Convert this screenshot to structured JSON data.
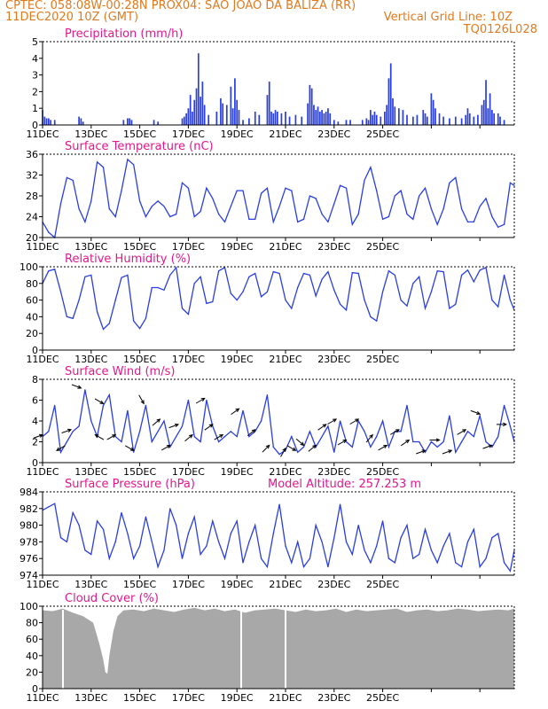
{
  "header": {
    "line1": "CPTEC:   058:08W-00:28N   PROX04: SAO JOAO DA BALIZA (RR)",
    "line2": "11DEC2020 10Z (GMT)",
    "grid_note": "Vertical Grid Line: 10Z",
    "code": "TQ0126L028"
  },
  "colors": {
    "header_text": "#e07a1f",
    "title_text": "#e0188c",
    "series": "#2a3ee0",
    "cloud": "#a8a8a8",
    "arrows": "#000000"
  },
  "x_tick_labels": [
    "11DEC",
    "13DEC",
    "15DEC",
    "17DEC",
    "19DEC",
    "21DEC",
    "23DEC",
    "25DEC"
  ],
  "chart_data": [
    {
      "id": "precip",
      "type": "bar",
      "title": "Precipitation (mm/h)",
      "ylim": [
        0,
        5
      ],
      "yticks": [
        0,
        1,
        2,
        3,
        4,
        5
      ],
      "x_unit": "hours since 11DEC2020 10Z",
      "bars": [
        [
          0,
          0.9
        ],
        [
          2,
          0.5
        ],
        [
          4,
          0.4
        ],
        [
          6,
          0.4
        ],
        [
          8,
          0.3
        ],
        [
          12,
          0.3
        ],
        [
          36,
          0.5
        ],
        [
          38,
          0.4
        ],
        [
          40,
          0.2
        ],
        [
          80,
          0.3
        ],
        [
          84,
          0.4
        ],
        [
          86,
          0.4
        ],
        [
          88,
          0.3
        ],
        [
          110,
          0.3
        ],
        [
          114,
          0.2
        ],
        [
          138,
          0.4
        ],
        [
          140,
          0.5
        ],
        [
          142,
          0.7
        ],
        [
          144,
          1.0
        ],
        [
          146,
          1.8
        ],
        [
          148,
          0.8
        ],
        [
          150,
          1.5
        ],
        [
          152,
          2.2
        ],
        [
          154,
          4.3
        ],
        [
          156,
          1.7
        ],
        [
          158,
          2.6
        ],
        [
          160,
          1.2
        ],
        [
          164,
          0.6
        ],
        [
          172,
          0.8
        ],
        [
          176,
          1.6
        ],
        [
          178,
          1.3
        ],
        [
          182,
          1.2
        ],
        [
          186,
          2.3
        ],
        [
          188,
          1.0
        ],
        [
          190,
          2.8
        ],
        [
          192,
          1.5
        ],
        [
          194,
          0.9
        ],
        [
          198,
          0.3
        ],
        [
          204,
          0.4
        ],
        [
          210,
          0.8
        ],
        [
          214,
          0.6
        ],
        [
          222,
          1.8
        ],
        [
          224,
          2.6
        ],
        [
          226,
          0.8
        ],
        [
          228,
          0.7
        ],
        [
          230,
          0.9
        ],
        [
          232,
          0.8
        ],
        [
          236,
          0.7
        ],
        [
          240,
          0.8
        ],
        [
          244,
          0.5
        ],
        [
          250,
          0.6
        ],
        [
          256,
          0.5
        ],
        [
          262,
          1.3
        ],
        [
          264,
          2.4
        ],
        [
          266,
          2.2
        ],
        [
          268,
          1.2
        ],
        [
          270,
          0.9
        ],
        [
          272,
          1.1
        ],
        [
          274,
          0.8
        ],
        [
          276,
          0.9
        ],
        [
          278,
          0.7
        ],
        [
          280,
          0.8
        ],
        [
          282,
          1.0
        ],
        [
          284,
          0.7
        ],
        [
          288,
          0.3
        ],
        [
          292,
          0.2
        ],
        [
          300,
          0.3
        ],
        [
          304,
          0.3
        ],
        [
          316,
          0.3
        ],
        [
          320,
          0.4
        ],
        [
          322,
          0.3
        ],
        [
          324,
          0.9
        ],
        [
          326,
          0.6
        ],
        [
          328,
          0.8
        ],
        [
          330,
          0.6
        ],
        [
          334,
          0.5
        ],
        [
          338,
          0.8
        ],
        [
          340,
          1.2
        ],
        [
          342,
          2.8
        ],
        [
          344,
          3.7
        ],
        [
          346,
          1.6
        ],
        [
          348,
          1.1
        ],
        [
          352,
          1.0
        ],
        [
          356,
          0.9
        ],
        [
          360,
          0.6
        ],
        [
          366,
          0.5
        ],
        [
          370,
          0.6
        ],
        [
          376,
          0.9
        ],
        [
          378,
          0.7
        ],
        [
          380,
          0.5
        ],
        [
          384,
          1.9
        ],
        [
          386,
          1.5
        ],
        [
          388,
          1.0
        ],
        [
          392,
          0.7
        ],
        [
          396,
          0.5
        ],
        [
          402,
          0.4
        ],
        [
          408,
          0.5
        ],
        [
          414,
          0.4
        ],
        [
          418,
          0.6
        ],
        [
          420,
          1.0
        ],
        [
          422,
          0.7
        ],
        [
          426,
          0.5
        ],
        [
          430,
          0.6
        ],
        [
          434,
          1.2
        ],
        [
          436,
          1.5
        ],
        [
          438,
          2.7
        ],
        [
          440,
          1.0
        ],
        [
          442,
          1.9
        ],
        [
          444,
          0.9
        ],
        [
          446,
          0.7
        ],
        [
          450,
          0.7
        ],
        [
          452,
          0.5
        ],
        [
          456,
          0.3
        ]
      ]
    },
    {
      "id": "temp",
      "type": "line",
      "title": "Surface Temperature (nC)",
      "ylim": [
        20,
        36
      ],
      "yticks": [
        20,
        24,
        28,
        32,
        36
      ],
      "x_unit": "hours since 11DEC2020 10Z",
      "x": [
        0,
        6,
        12,
        18,
        24,
        30,
        36,
        42,
        48,
        54,
        60,
        66,
        72,
        78,
        84,
        90,
        96,
        102,
        108,
        114,
        120,
        126,
        132,
        138,
        144,
        150,
        156,
        162,
        168,
        174,
        180,
        186,
        192,
        198,
        204,
        210,
        216,
        222,
        228,
        234,
        240,
        246,
        252,
        258,
        264,
        270,
        276,
        282,
        288,
        294,
        300,
        306,
        312,
        318,
        324,
        330,
        336,
        342,
        348,
        354,
        360,
        366,
        372,
        378,
        384,
        390,
        396,
        402,
        408,
        414,
        420,
        426,
        432,
        438,
        444,
        450,
        456,
        462,
        466
      ],
      "values": [
        23.0,
        21.0,
        20.0,
        26.5,
        31.5,
        31.0,
        25.5,
        23.0,
        27.0,
        34.5,
        33.5,
        25.5,
        24.0,
        29.0,
        35.0,
        34.0,
        27.0,
        24.0,
        26.0,
        27.0,
        26.0,
        24.0,
        24.5,
        30.5,
        29.5,
        24.0,
        25.0,
        29.5,
        27.5,
        24.5,
        23.0,
        26.0,
        29.0,
        29.0,
        23.5,
        23.5,
        28.5,
        29.5,
        23.0,
        26.0,
        29.5,
        29.0,
        23.0,
        23.5,
        28.0,
        27.5,
        24.5,
        23.0,
        26.5,
        30.0,
        29.5,
        22.5,
        24.5,
        31.0,
        33.5,
        29.0,
        23.5,
        24.0,
        28.0,
        29.0,
        24.5,
        23.5,
        28.0,
        29.5,
        25.5,
        22.5,
        25.5,
        30.5,
        31.5,
        25.5,
        23.0,
        23.0,
        26.0,
        27.5,
        24.0,
        22.0,
        22.5,
        30.5,
        30.0
      ]
    },
    {
      "id": "rh",
      "type": "line",
      "title": "Relative Humidity (%)",
      "ylim": [
        0,
        100
      ],
      "yticks": [
        0,
        20,
        40,
        60,
        80,
        100
      ],
      "x_unit": "hours since 11DEC2020 10Z",
      "x": [
        0,
        6,
        12,
        18,
        24,
        30,
        36,
        42,
        48,
        54,
        60,
        66,
        72,
        78,
        84,
        90,
        96,
        102,
        108,
        114,
        120,
        126,
        132,
        138,
        144,
        150,
        156,
        162,
        168,
        174,
        180,
        186,
        192,
        198,
        204,
        210,
        216,
        222,
        228,
        234,
        240,
        246,
        252,
        258,
        264,
        270,
        276,
        282,
        288,
        294,
        300,
        306,
        312,
        318,
        324,
        330,
        336,
        342,
        348,
        354,
        360,
        366,
        372,
        378,
        384,
        390,
        396,
        402,
        408,
        414,
        420,
        426,
        432,
        438,
        444,
        450,
        456,
        462,
        466
      ],
      "values": [
        80,
        95,
        97,
        70,
        40,
        38,
        60,
        88,
        90,
        46,
        25,
        32,
        60,
        87,
        90,
        35,
        26,
        38,
        75,
        75,
        72,
        90,
        99,
        50,
        43,
        80,
        88,
        56,
        58,
        95,
        99,
        68,
        60,
        70,
        88,
        92,
        64,
        70,
        94,
        92,
        60,
        50,
        75,
        92,
        90,
        65,
        85,
        94,
        72,
        55,
        48,
        93,
        92,
        60,
        40,
        35,
        70,
        95,
        90,
        60,
        53,
        80,
        88,
        50,
        70,
        95,
        94,
        50,
        55,
        90,
        96,
        82,
        96,
        99,
        60,
        52,
        90,
        60,
        48
      ]
    },
    {
      "id": "wind",
      "type": "line",
      "title": "Surface Wind (m/s)",
      "ylim": [
        0,
        8
      ],
      "yticks": [
        0,
        2,
        4,
        6,
        8
      ],
      "x_unit": "hours since 11DEC2020 10Z",
      "x": [
        0,
        6,
        12,
        18,
        24,
        30,
        36,
        42,
        48,
        54,
        60,
        66,
        72,
        78,
        84,
        90,
        96,
        102,
        108,
        114,
        120,
        126,
        132,
        138,
        144,
        150,
        156,
        162,
        168,
        174,
        180,
        186,
        192,
        198,
        204,
        210,
        216,
        222,
        228,
        234,
        240,
        246,
        252,
        258,
        264,
        270,
        276,
        282,
        288,
        294,
        300,
        306,
        312,
        318,
        324,
        330,
        336,
        342,
        348,
        354,
        360,
        366,
        372,
        378,
        384,
        390,
        396,
        402,
        408,
        414,
        420,
        426,
        432,
        438,
        444,
        450,
        456,
        462,
        466
      ],
      "values": [
        2.5,
        3.0,
        5.5,
        1.0,
        2.0,
        3.0,
        3.5,
        7.0,
        4.0,
        2.5,
        5.5,
        6.5,
        2.5,
        2.0,
        5.0,
        1.0,
        3.0,
        5.5,
        2.0,
        3.0,
        4.0,
        1.5,
        2.5,
        3.5,
        6.0,
        2.5,
        2.0,
        6.0,
        3.5,
        2.0,
        2.5,
        3.0,
        2.5,
        5.0,
        2.5,
        3.0,
        4.0,
        6.5,
        1.5,
        0.8,
        1.2,
        2.5,
        1.0,
        1.5,
        3.0,
        1.5,
        2.5,
        3.5,
        1.0,
        4.0,
        2.0,
        1.5,
        4.0,
        3.0,
        1.5,
        2.5,
        4.0,
        1.5,
        3.0,
        3.0,
        5.5,
        2.0,
        2.0,
        1.0,
        2.0,
        1.5,
        2.0,
        4.5,
        1.0,
        2.0,
        3.0,
        2.5,
        4.5,
        2.0,
        1.5,
        2.5,
        5.5,
        3.5,
        2.0
      ]
    },
    {
      "id": "pressure",
      "type": "line",
      "title": "Surface Pressure (hPa)",
      "note": "Model Altitude: 257.253  m",
      "ylim": [
        974,
        984
      ],
      "yticks": [
        974,
        976,
        978,
        980,
        982,
        984
      ],
      "x_unit": "hours since 11DEC2020 10Z",
      "x": [
        0,
        6,
        12,
        18,
        24,
        30,
        36,
        42,
        48,
        54,
        60,
        66,
        72,
        78,
        84,
        90,
        96,
        102,
        108,
        114,
        120,
        126,
        132,
        138,
        144,
        150,
        156,
        162,
        168,
        174,
        180,
        186,
        192,
        198,
        204,
        210,
        216,
        222,
        228,
        234,
        240,
        246,
        252,
        258,
        264,
        270,
        276,
        282,
        288,
        294,
        300,
        306,
        312,
        318,
        324,
        330,
        336,
        342,
        348,
        354,
        360,
        366,
        372,
        378,
        384,
        390,
        396,
        402,
        408,
        414,
        420,
        426,
        432,
        438,
        444,
        450,
        456,
        462,
        466
      ],
      "values": [
        981.8,
        982.2,
        982.6,
        978.5,
        978.0,
        981.5,
        980.0,
        977.0,
        976.5,
        980.5,
        979.5,
        976.0,
        978.0,
        981.5,
        979.0,
        976.0,
        977.5,
        981.0,
        978.0,
        975.0,
        977.0,
        982.0,
        980.0,
        976.0,
        979.0,
        981.0,
        976.5,
        977.5,
        980.5,
        978.0,
        976.0,
        979.0,
        980.5,
        975.5,
        978.0,
        980.0,
        976.0,
        975.0,
        979.0,
        982.5,
        977.5,
        975.5,
        978.0,
        975.0,
        976.0,
        980.0,
        978.0,
        975.0,
        978.5,
        982.5,
        978.0,
        976.5,
        980.0,
        977.0,
        975.5,
        977.5,
        980.5,
        976.0,
        975.5,
        978.5,
        980.0,
        976.0,
        976.5,
        979.5,
        977.0,
        975.5,
        977.5,
        979.0,
        975.5,
        975.0,
        978.0,
        979.5,
        975.0,
        976.0,
        978.5,
        979.0,
        975.5,
        974.5,
        977.0
      ]
    },
    {
      "id": "cloud",
      "type": "area",
      "title": "Cloud Cover (%)",
      "ylim": [
        0,
        100
      ],
      "yticks": [
        0,
        20,
        40,
        60,
        80,
        100
      ],
      "x_unit": "hours since 11DEC2020 10Z",
      "x": [
        0,
        10,
        20,
        30,
        40,
        50,
        56,
        60,
        62,
        64,
        66,
        70,
        74,
        80,
        90,
        100,
        110,
        120,
        130,
        140,
        150,
        160,
        170,
        180,
        190,
        200,
        210,
        220,
        230,
        240,
        250,
        260,
        270,
        280,
        290,
        300,
        310,
        320,
        330,
        340,
        350,
        360,
        370,
        380,
        390,
        400,
        410,
        420,
        430,
        440,
        450,
        460,
        466
      ],
      "values": [
        95,
        94,
        97,
        92,
        88,
        80,
        55,
        35,
        20,
        18,
        40,
        70,
        88,
        95,
        96,
        94,
        97,
        95,
        93,
        96,
        98,
        95,
        97,
        94,
        96,
        92,
        95,
        96,
        97,
        95,
        93,
        96,
        94,
        95,
        97,
        93,
        96,
        94,
        95,
        96,
        97,
        93,
        95,
        96,
        94,
        95,
        97,
        96,
        94,
        95,
        96,
        95,
        97
      ]
    }
  ]
}
